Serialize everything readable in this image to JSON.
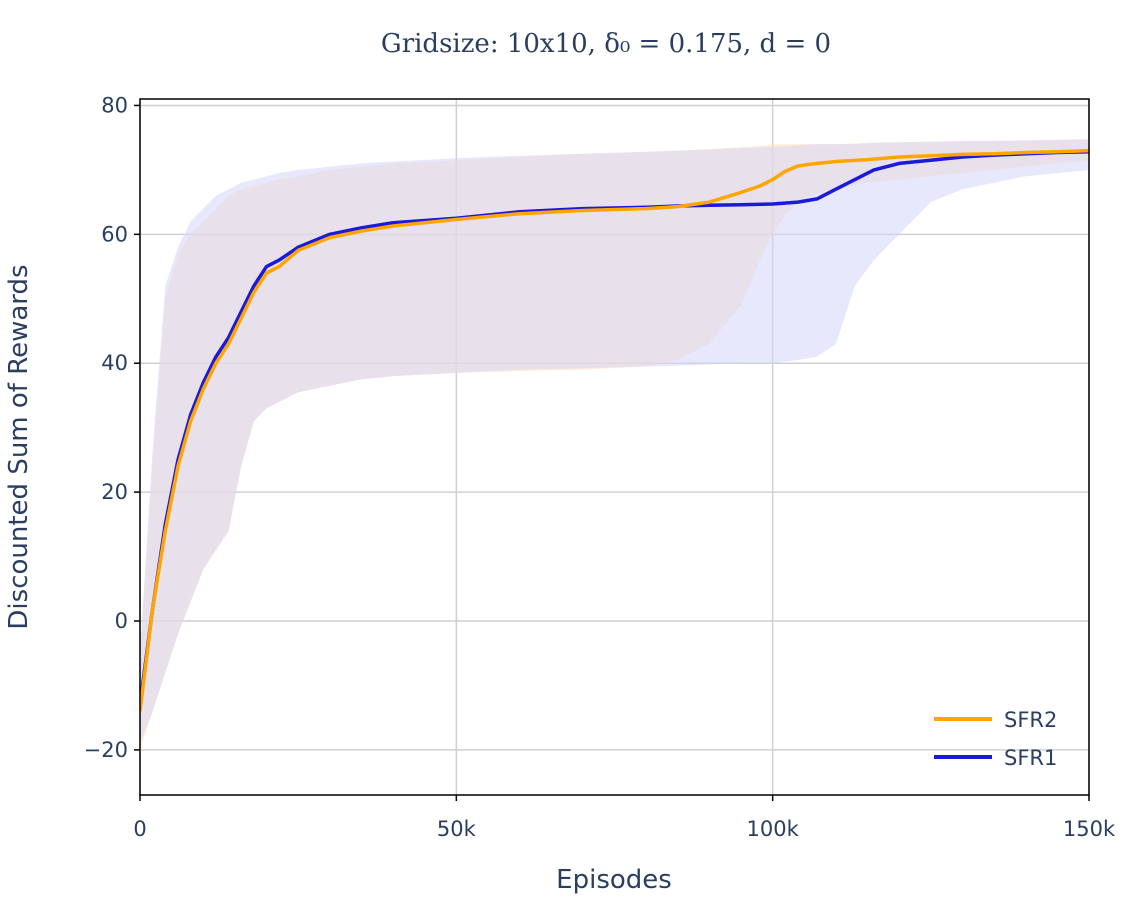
{
  "chart_data": {
    "type": "line",
    "title": "Gridsize: 10x10, δ₀ = 0.175, d = 0",
    "xlabel": "Episodes",
    "ylabel": "Discounted Sum of Rewards",
    "xlim": [
      0,
      150000
    ],
    "ylim": [
      -27,
      81
    ],
    "x_ticks": [
      {
        "value": 0,
        "label": "0"
      },
      {
        "value": 50000,
        "label": "50k"
      },
      {
        "value": 100000,
        "label": "100k"
      },
      {
        "value": 150000,
        "label": "150k"
      }
    ],
    "y_ticks": [
      {
        "value": -20,
        "label": "−20"
      },
      {
        "value": 0,
        "label": "0"
      },
      {
        "value": 20,
        "label": "20"
      },
      {
        "value": 40,
        "label": "40"
      },
      {
        "value": 60,
        "label": "60"
      },
      {
        "value": 80,
        "label": "80"
      }
    ],
    "grid": true,
    "legend_position": "bottom-right",
    "series": [
      {
        "name": "SFR2",
        "color": "#ffa500",
        "band_color": "#ffe2b8",
        "x": [
          0,
          2000,
          4000,
          6000,
          8000,
          10000,
          12000,
          14000,
          16000,
          18000,
          20000,
          22000,
          25000,
          30000,
          35000,
          40000,
          50000,
          60000,
          70000,
          80000,
          85000,
          90000,
          95000,
          98000,
          100000,
          102000,
          104000,
          106000,
          110000,
          115000,
          120000,
          125000,
          130000,
          135000,
          140000,
          145000,
          150000
        ],
        "mean": [
          -14,
          2,
          14,
          24,
          31,
          36,
          40,
          43,
          47,
          51,
          54,
          55,
          57.5,
          59.5,
          60.5,
          61.3,
          62.3,
          63.2,
          63.7,
          64.0,
          64.3,
          65.0,
          66.5,
          67.5,
          68.5,
          69.8,
          70.6,
          70.9,
          71.3,
          71.6,
          72.0,
          72.2,
          72.4,
          72.5,
          72.7,
          72.8,
          73.0
        ],
        "upper": [
          -5,
          25,
          50,
          57,
          60,
          62,
          64,
          66,
          67,
          67.5,
          68,
          68.5,
          69,
          70,
          70.5,
          71,
          71.5,
          72,
          72.5,
          72.8,
          73,
          73.2,
          73.5,
          73.7,
          74,
          74,
          74,
          74,
          74,
          74.2,
          74.3,
          74.3,
          74.4,
          74.5,
          74.5,
          74.6,
          74.7
        ],
        "lower": [
          -20,
          -14,
          -8,
          -2,
          3,
          8,
          11,
          14,
          24,
          31,
          33,
          34,
          35.5,
          36.5,
          37.5,
          38,
          38.5,
          38.8,
          39,
          39.5,
          40.5,
          43,
          49,
          56,
          60,
          63,
          65,
          66,
          67,
          68,
          68.5,
          69,
          69.5,
          70,
          70.5,
          71,
          71.5
        ]
      },
      {
        "name": "SFR1",
        "color": "#1a1adb",
        "band_color": "#d6d6fb",
        "x": [
          0,
          2000,
          4000,
          6000,
          8000,
          10000,
          12000,
          14000,
          16000,
          18000,
          20000,
          22000,
          25000,
          30000,
          35000,
          40000,
          50000,
          60000,
          70000,
          80000,
          85000,
          90000,
          95000,
          100000,
          104000,
          107000,
          110000,
          113000,
          116000,
          120000,
          125000,
          130000,
          135000,
          140000,
          145000,
          150000
        ],
        "mean": [
          -13,
          2,
          15,
          25,
          32,
          37,
          41,
          44,
          48,
          52,
          55,
          56,
          58,
          60,
          61,
          61.8,
          62.5,
          63.5,
          64.0,
          64.2,
          64.4,
          64.5,
          64.6,
          64.7,
          65,
          65.5,
          67,
          68.5,
          70.0,
          71.0,
          71.5,
          72.0,
          72.3,
          72.5,
          72.7,
          72.8
        ],
        "upper": [
          -5,
          27,
          52,
          58,
          62,
          64,
          66,
          67,
          68,
          68.5,
          69,
          69.5,
          70,
          70.5,
          71,
          71.3,
          71.8,
          72.2,
          72.5,
          72.8,
          73,
          73.2,
          73.4,
          73.6,
          73.8,
          74,
          74,
          74,
          74.2,
          74.3,
          74.4,
          74.5,
          74.5,
          74.6,
          74.7,
          74.8
        ],
        "lower": [
          -19,
          -14,
          -8,
          -2,
          3,
          8,
          11,
          14,
          24,
          31,
          33,
          34,
          35.5,
          36.5,
          37.5,
          38,
          38.5,
          39,
          39.2,
          39.5,
          39.6,
          39.8,
          40,
          40,
          40.5,
          41,
          43,
          52,
          56,
          60,
          65,
          67,
          68,
          69,
          69.5,
          70
        ]
      }
    ]
  }
}
